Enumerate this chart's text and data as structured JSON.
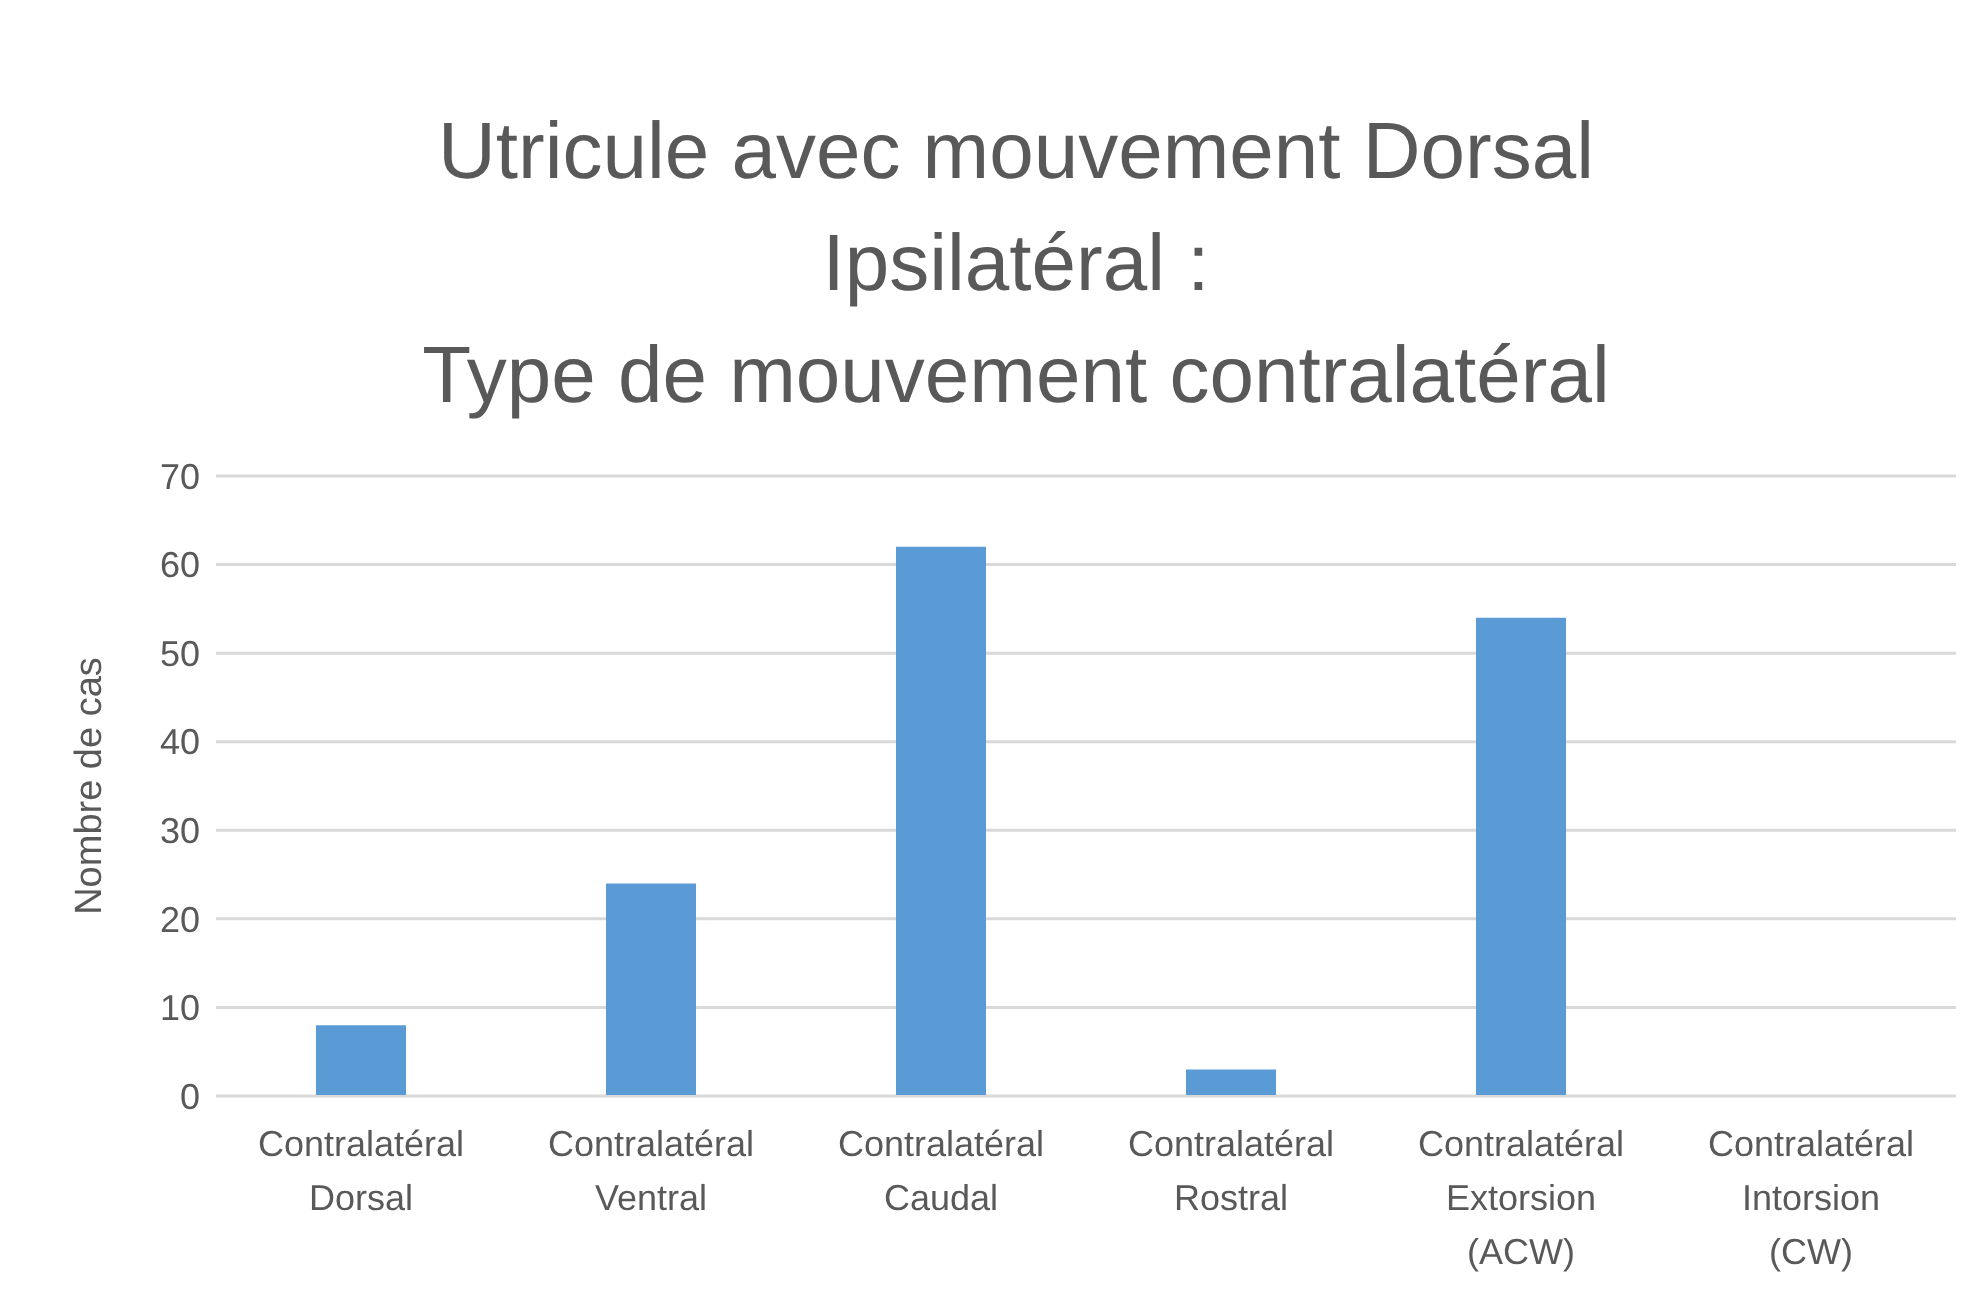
{
  "chart_data": {
    "type": "bar",
    "title": "Utricule avec mouvement Dorsal\nIpsilatéral :\nType de mouvement contralatéral",
    "ylabel": "Nombre de cas",
    "categories": [
      "Contralatéral Dorsal",
      "Contralatéral Ventral",
      "Contralatéral Caudal",
      "Contralatéral Rostral",
      "Contralatéral Extorsion (ACW)",
      "Contralatéral Intorsion (CW)"
    ],
    "values": [
      8,
      24,
      62,
      3,
      54,
      0
    ],
    "color": "#5b9bd5",
    "ylim": [
      0,
      70
    ],
    "yticks": [
      0,
      10,
      20,
      30,
      40,
      50,
      60,
      70
    ],
    "grid": "y"
  }
}
